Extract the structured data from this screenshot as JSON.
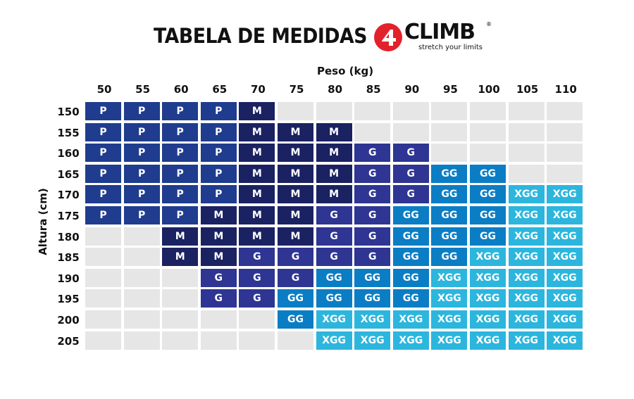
{
  "header": {
    "title": "TABELA DE MEDIDAS",
    "logo_text": "CLIMB",
    "logo_tagline": "stretch your limits",
    "logo_mark": "®"
  },
  "chart_data": {
    "type": "table",
    "xlabel": "Peso (kg)",
    "ylabel": "Altura (cm)",
    "x": [
      "50",
      "55",
      "60",
      "65",
      "70",
      "75",
      "80",
      "85",
      "90",
      "95",
      "100",
      "105",
      "110"
    ],
    "y": [
      "150",
      "155",
      "160",
      "165",
      "170",
      "175",
      "180",
      "185",
      "190",
      "195",
      "200",
      "205"
    ],
    "colors": {
      "P": "#1f3c8e",
      "M": "#1b2262",
      "G": "#2e3592",
      "GG": "#0b7dc4",
      "XGG": "#2cb6de",
      "empty": "#e6e6e6"
    },
    "cells": [
      [
        "P",
        "P",
        "P",
        "P",
        "M",
        "",
        "",
        "",
        "",
        "",
        "",
        "",
        ""
      ],
      [
        "P",
        "P",
        "P",
        "P",
        "M",
        "M",
        "M",
        "",
        "",
        "",
        "",
        "",
        ""
      ],
      [
        "P",
        "P",
        "P",
        "P",
        "M",
        "M",
        "M",
        "G",
        "G",
        "",
        "",
        "",
        ""
      ],
      [
        "P",
        "P",
        "P",
        "P",
        "M",
        "M",
        "M",
        "G",
        "G",
        "GG",
        "GG",
        "",
        ""
      ],
      [
        "P",
        "P",
        "P",
        "P",
        "M",
        "M",
        "M",
        "G",
        "G",
        "GG",
        "GG",
        "XGG",
        "XGG"
      ],
      [
        "P",
        "P",
        "P",
        "M",
        "M",
        "M",
        "G",
        "G",
        "GG",
        "GG",
        "GG",
        "XGG",
        "XGG"
      ],
      [
        "",
        "",
        "M",
        "M",
        "M",
        "M",
        "G",
        "G",
        "GG",
        "GG",
        "GG",
        "XGG",
        "XGG"
      ],
      [
        "",
        "",
        "M",
        "M",
        "G",
        "G",
        "G",
        "G",
        "GG",
        "GG",
        "XGG",
        "XGG",
        "XGG"
      ],
      [
        "",
        "",
        "",
        "G",
        "G",
        "G",
        "GG",
        "GG",
        "GG",
        "XGG",
        "XGG",
        "XGG",
        "XGG"
      ],
      [
        "",
        "",
        "",
        "G",
        "G",
        "GG",
        "GG",
        "GG",
        "GG",
        "XGG",
        "XGG",
        "XGG",
        "XGG"
      ],
      [
        "",
        "",
        "",
        "",
        "",
        "GG",
        "XGG",
        "XGG",
        "XGG",
        "XGG",
        "XGG",
        "XGG",
        "XGG"
      ],
      [
        "",
        "",
        "",
        "",
        "",
        "",
        "XGG",
        "XGG",
        "XGG",
        "XGG",
        "XGG",
        "XGG",
        "XGG"
      ]
    ]
  }
}
